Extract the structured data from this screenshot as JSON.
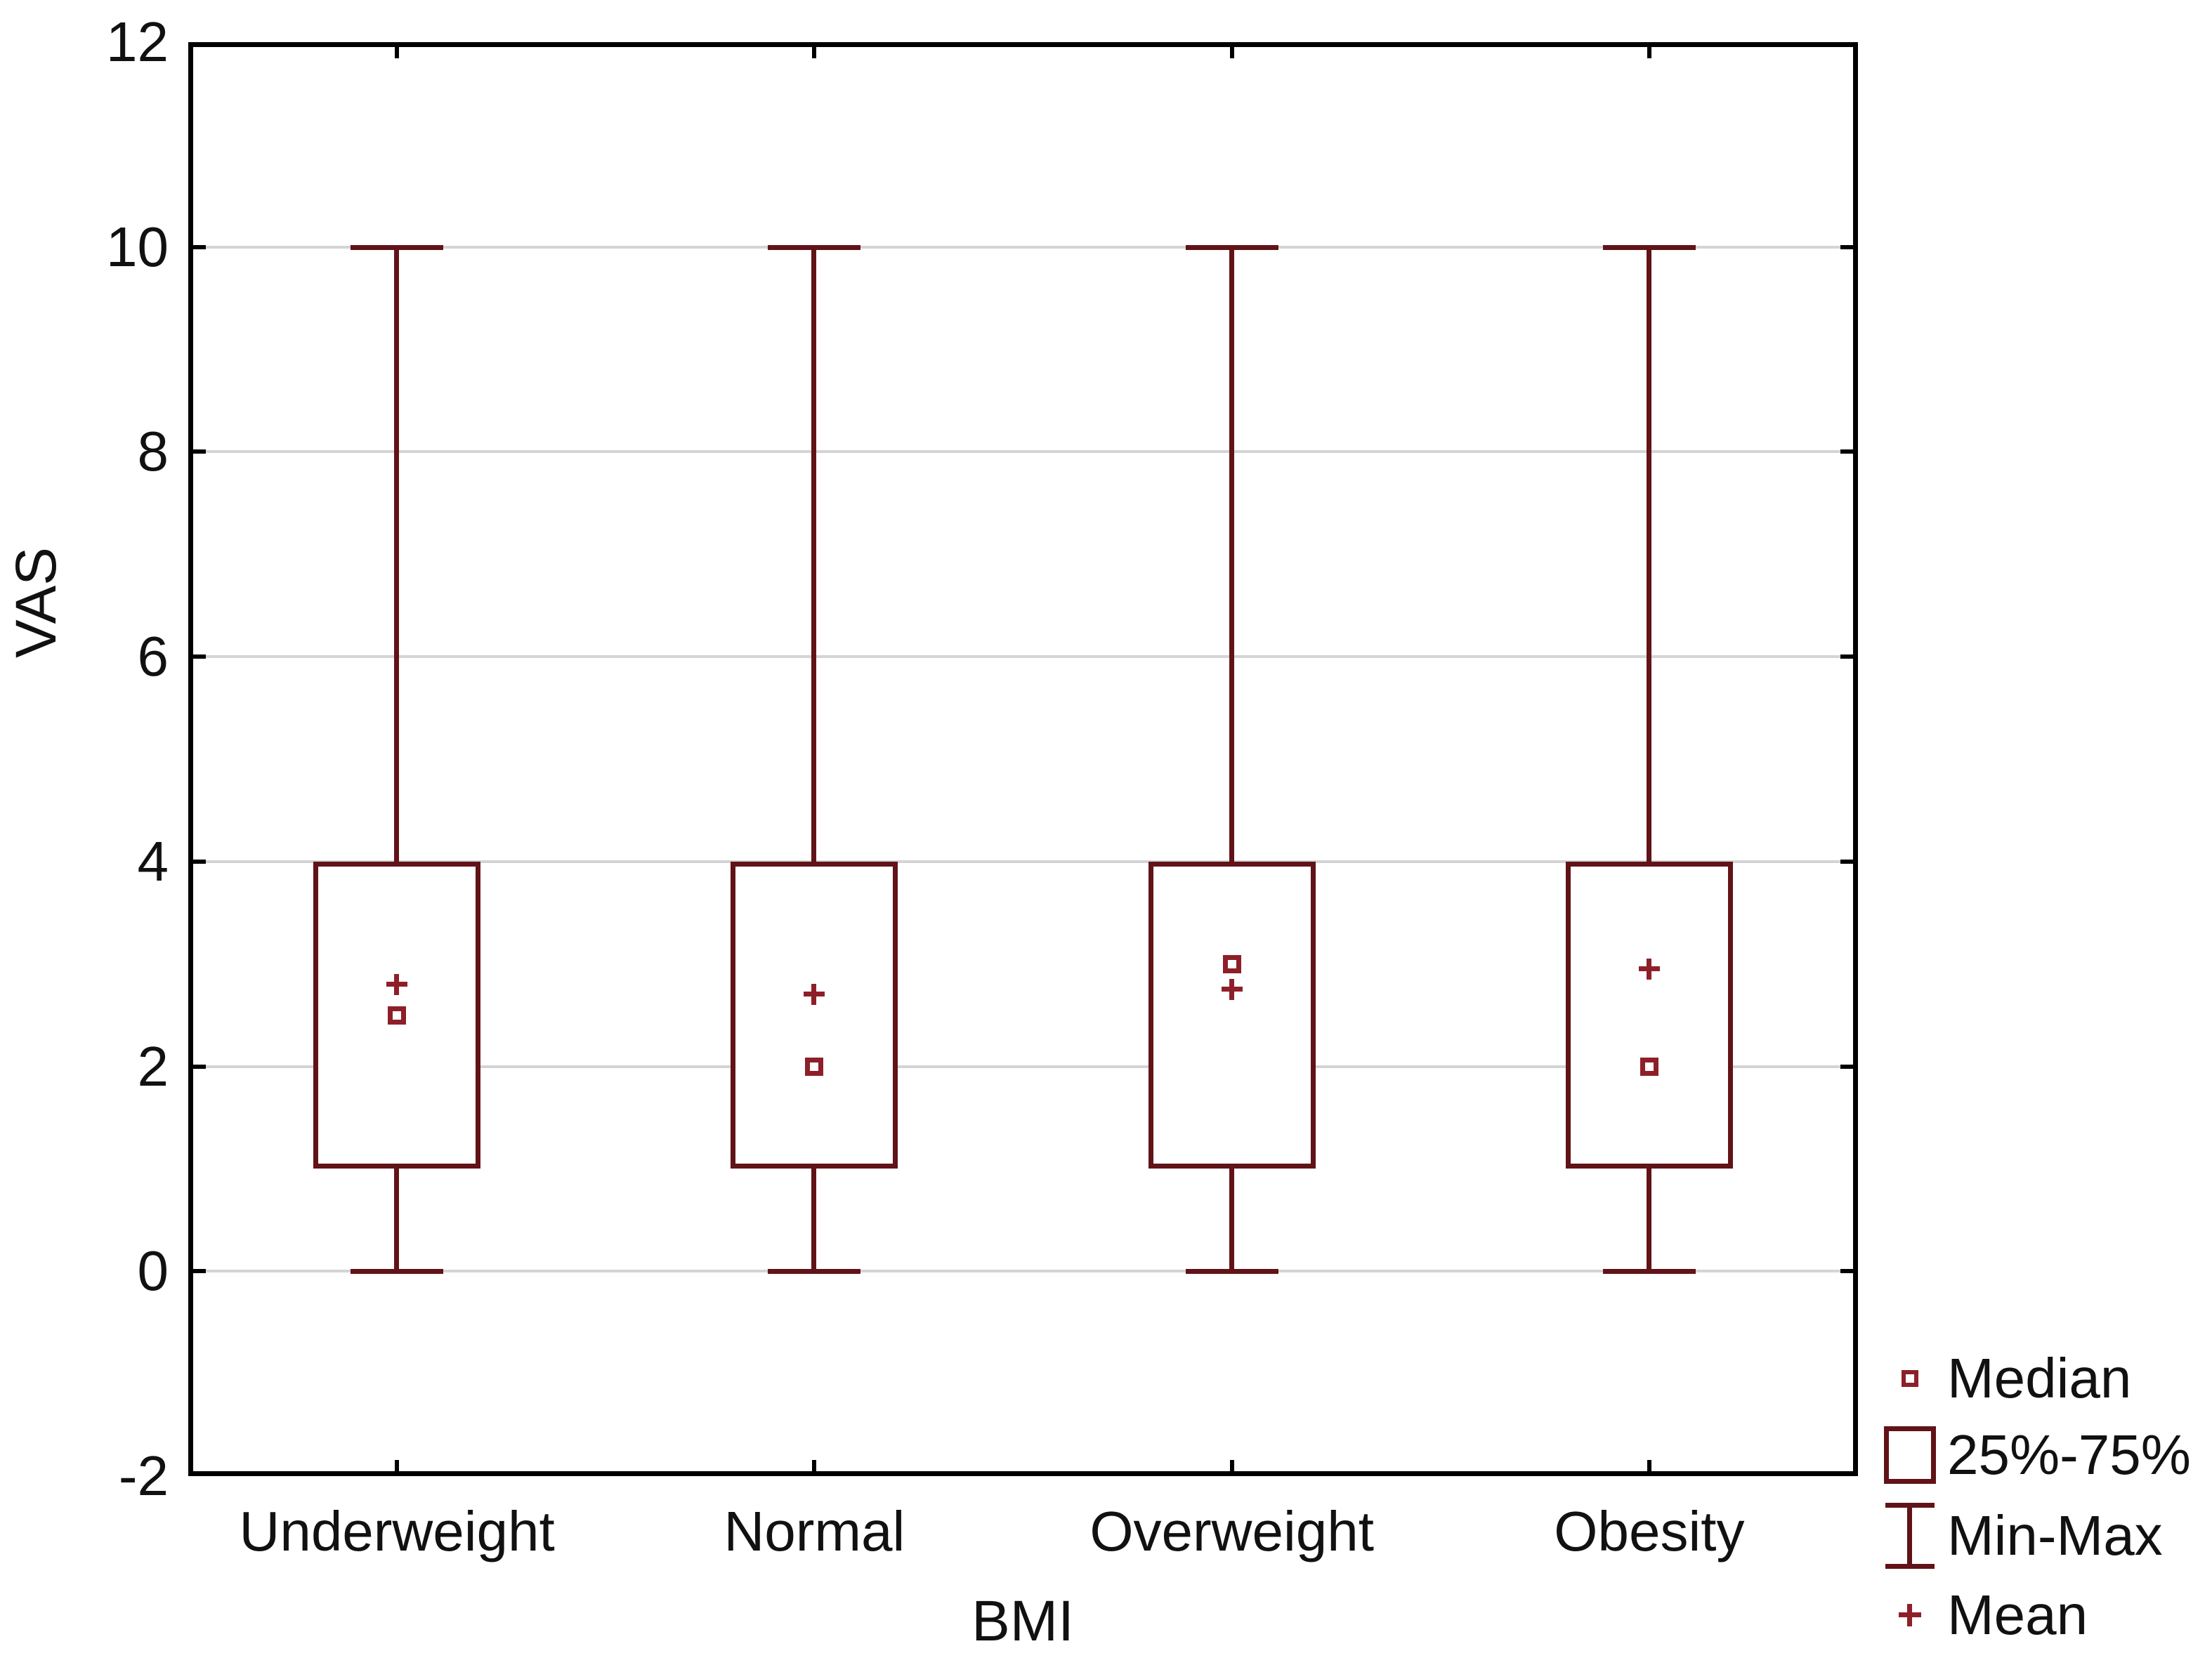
{
  "figure": {
    "background": "#ffffff"
  },
  "axes": {
    "y_title": "VAS",
    "x_title": "BMI"
  },
  "legend": {
    "position": "bottom-right",
    "items": [
      {
        "glyph": "median-square-icon",
        "label": "Median"
      },
      {
        "glyph": "iqr-box-icon",
        "label": "25%-75%"
      },
      {
        "glyph": "min-max-whisker-icon",
        "label": "Min-Max"
      },
      {
        "glyph": "mean-plus-icon",
        "label": "Mean"
      }
    ]
  },
  "colors": {
    "axis": "#000000",
    "grid": "#d4d4d4",
    "box_line": "#611317",
    "marker": "#8e1f29",
    "text": "#111111",
    "background": "#ffffff"
  },
  "chart_data": {
    "type": "box",
    "title": "",
    "xlabel": "BMI",
    "ylabel": "VAS",
    "categories": [
      "Underweight",
      "Normal",
      "Overweight",
      "Obesity"
    ],
    "ylim": [
      -2,
      12
    ],
    "yticks": [
      12,
      10,
      8,
      6,
      4,
      2,
      0,
      -2
    ],
    "grid": "horizontal-light-gray",
    "legend_position": "bottom-right",
    "legend_entries": [
      "Median",
      "25%-75%",
      "Min-Max",
      "Mean"
    ],
    "series": [
      {
        "category": "Underweight",
        "min": 0,
        "q1": 1,
        "median": 2.5,
        "q3": 4,
        "max": 10,
        "mean": 2.8
      },
      {
        "category": "Normal",
        "min": 0,
        "q1": 1,
        "median": 2.0,
        "q3": 4,
        "max": 10,
        "mean": 2.7
      },
      {
        "category": "Overweight",
        "min": 0,
        "q1": 1,
        "median": 3.0,
        "q3": 4,
        "max": 10,
        "mean": 2.75
      },
      {
        "category": "Obesity",
        "min": 0,
        "q1": 1,
        "median": 2.0,
        "q3": 4,
        "max": 10,
        "mean": 2.95
      }
    ]
  }
}
